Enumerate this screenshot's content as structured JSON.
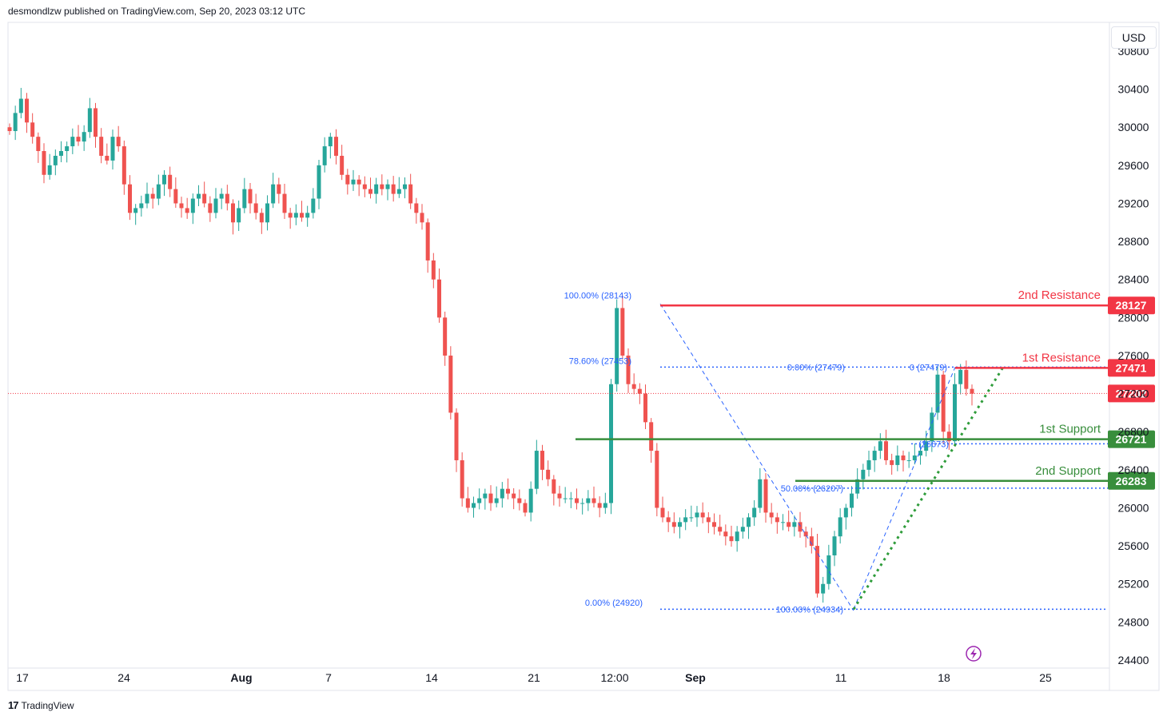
{
  "header": {
    "text": "desmondlzw published on TradingView.com, Sep 20, 2023 03:12 UTC"
  },
  "footer": {
    "logo": "17",
    "brand": "TradingView"
  },
  "currency": "USD",
  "colors": {
    "up": "#26a69a",
    "down": "#ef5350",
    "resistance": "#f23645",
    "support": "#388e3c",
    "fib": "#2962ff",
    "trend": "#2e9c3a",
    "price_line": "#f23645",
    "lightning": "#9c27b0"
  },
  "chart_data": {
    "type": "candlestick",
    "symbol_quote": "USD",
    "y_ticks": [
      "24400",
      "24800",
      "25200",
      "25600",
      "26000",
      "26400",
      "26800",
      "27200",
      "27600",
      "28000",
      "28400",
      "28800",
      "29200",
      "29600",
      "30000",
      "30400",
      "30800"
    ],
    "x_ticks": [
      "17",
      "24",
      "Aug",
      "7",
      "14",
      "21",
      "12:00",
      "Sep",
      "11",
      "18",
      "25"
    ],
    "ylim": [
      24400,
      30800
    ],
    "levels": [
      {
        "name": "2nd Resistance",
        "value": 28127,
        "kind": "resistance"
      },
      {
        "name": "1st Resistance",
        "value": 27471,
        "kind": "resistance"
      },
      {
        "name": "",
        "value": 27202,
        "kind": "last-price"
      },
      {
        "name": "1st Support",
        "value": 26721,
        "kind": "support"
      },
      {
        "name": "2nd Support",
        "value": 26283,
        "kind": "support"
      }
    ],
    "fib_labels": [
      {
        "text": "100.00% (28143)",
        "value": 28143
      },
      {
        "text": "78.60% (27453)",
        "value": 27453
      },
      {
        "text": "0.00% (24920)",
        "value": 24920
      },
      {
        "text": "0.00% (27479)",
        "value": 27479
      },
      {
        "text": "0 (27479)",
        "value": 27479
      },
      {
        "text": "50.00% (26207)",
        "value": 26207
      },
      {
        "text": "(26673)",
        "value": 26673
      },
      {
        "text": "100.00% (24934)",
        "value": 24934
      }
    ],
    "series_close_path": [
      29960,
      30150,
      30300,
      30050,
      29900,
      29750,
      29500,
      29600,
      29700,
      29750,
      29800,
      29900,
      29850,
      29950,
      30200,
      29900,
      29700,
      29650,
      29900,
      29800,
      29400,
      29100,
      29150,
      29200,
      29300,
      29250,
      29400,
      29500,
      29350,
      29200,
      29150,
      29100,
      29250,
      29300,
      29200,
      29100,
      29250,
      29300,
      29200,
      29000,
      29150,
      29350,
      29200,
      29100,
      29000,
      29200,
      29400,
      29300,
      29100,
      29050,
      29100,
      29050,
      29100,
      29250,
      29600,
      29800,
      29900,
      29700,
      29500,
      29400,
      29450,
      29400,
      29350,
      29300,
      29400,
      29350,
      29400,
      29300,
      29350,
      29400,
      29200,
      29100,
      29000,
      28600,
      28400,
      28000,
      27600,
      27000,
      26500,
      26100,
      26000,
      26050,
      26100,
      26150,
      26050,
      26100,
      26200,
      26150,
      26100,
      26050,
      25950,
      26200,
      26600,
      26400,
      26300,
      26150,
      26100,
      26100,
      26100,
      26050,
      26050,
      26100,
      26050,
      26000,
      26050,
      27300,
      28100,
      27600,
      27300,
      27250,
      27200,
      26900,
      26600,
      26000,
      25900,
      25850,
      25800,
      25850,
      25900,
      25900,
      25950,
      25900,
      25850,
      25800,
      25750,
      25700,
      25650,
      25750,
      25800,
      25900,
      26000,
      26300,
      25950,
      25900,
      25850,
      25850,
      25800,
      25850,
      25750,
      25700,
      25600,
      25100,
      25200,
      25500,
      25700,
      25900,
      26000,
      26150,
      26300,
      26400,
      26500,
      26600,
      26700,
      26500,
      26450,
      26550,
      26500,
      26500,
      26550,
      26600,
      26700,
      27000,
      27400,
      26800,
      26700,
      27300,
      27450,
      27250,
      27200
    ]
  }
}
